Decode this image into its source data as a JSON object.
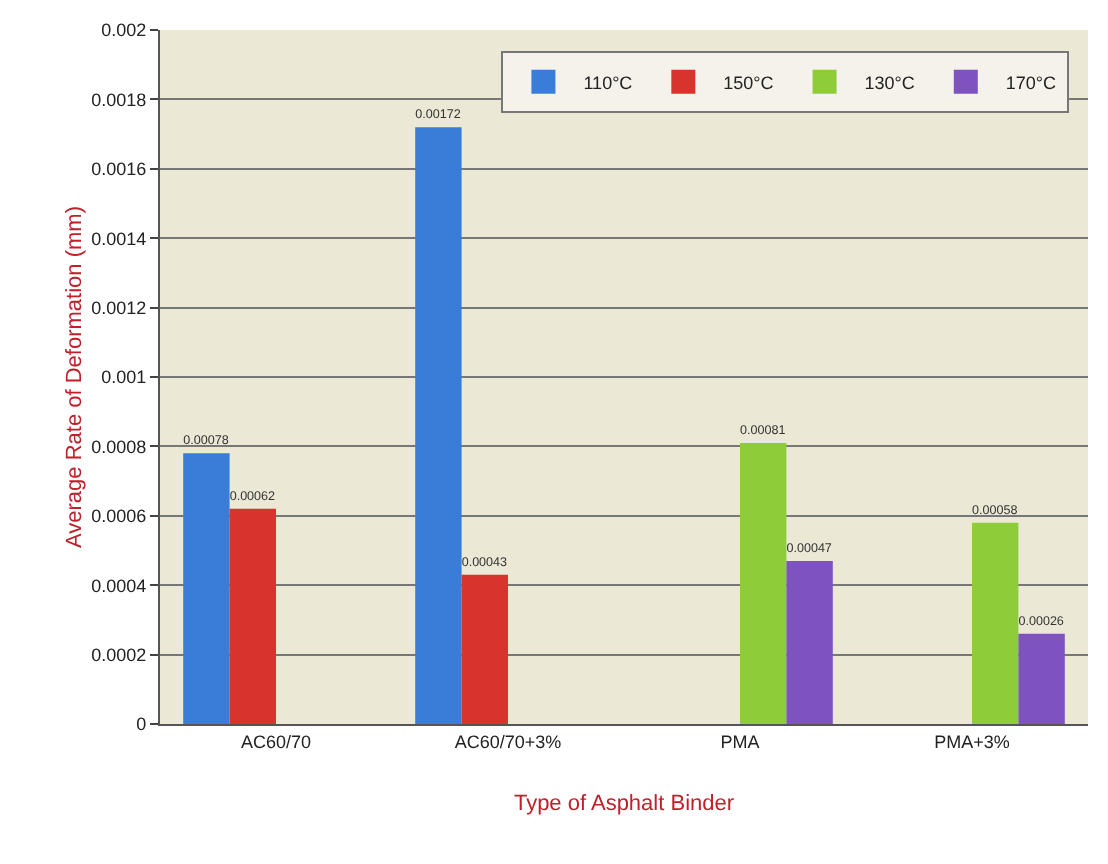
{
  "chart_data": {
    "type": "bar",
    "xlabel": "Type of Asphalt Binder",
    "ylabel": "Average Rate of Deformation (mm)",
    "categories": [
      "AC60/70",
      "AC60/70+3%",
      "PMA",
      "PMA+3%"
    ],
    "series": [
      {
        "name": "110°C",
        "color": "#3a7dd8",
        "values": [
          0.00078,
          0.00172,
          null,
          null
        ]
      },
      {
        "name": "150°C",
        "color": "#d9332e",
        "values": [
          0.00062,
          0.00043,
          null,
          null
        ]
      },
      {
        "name": "130°C",
        "color": "#8fcc3a",
        "values": [
          null,
          null,
          0.00081,
          0.00058
        ]
      },
      {
        "name": "170°C",
        "color": "#7e52c0",
        "values": [
          null,
          null,
          0.00047,
          0.00026
        ]
      }
    ],
    "ylim": [
      0,
      0.002
    ],
    "yticks": [
      0,
      0.0002,
      0.0004,
      0.0006,
      0.0008,
      0.001,
      0.0012,
      0.0014,
      0.0016,
      0.0018,
      0.002
    ],
    "grid": "y",
    "legend": "top right",
    "data_labels": true
  }
}
